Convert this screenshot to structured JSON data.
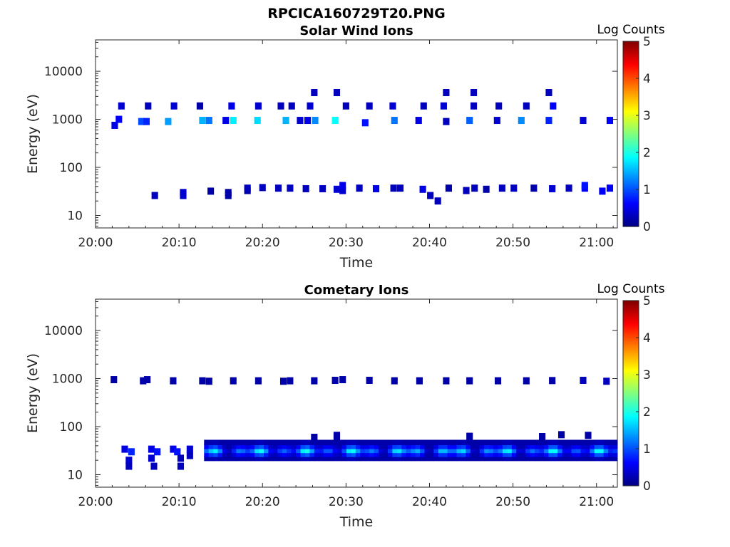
{
  "figure": {
    "title": "RPCICA160729T20.PNG"
  },
  "chart_data": [
    {
      "type": "heatmap",
      "title": "Solar Wind Ions",
      "xlabel": "Time",
      "ylabel": "Energy (eV)",
      "x_ticks": [
        "20:00",
        "20:10",
        "20:20",
        "20:30",
        "20:40",
        "20:50",
        "21:00"
      ],
      "xlim_minutes": [
        0,
        62.5
      ],
      "y_scale": "log",
      "y_ticks": [
        "10",
        "100",
        "1000",
        "10000"
      ],
      "ylim": [
        5.5,
        45000
      ],
      "colorbar": {
        "label": "Log Counts",
        "ticks": [
          "0",
          "1",
          "2",
          "3",
          "4",
          "5"
        ],
        "range": [
          0,
          5
        ],
        "colormap": "jet"
      },
      "cells": [
        [
          2.3,
          750,
          0.5
        ],
        [
          2.8,
          1000,
          0.6
        ],
        [
          3.1,
          1900,
          0.4
        ],
        [
          5.5,
          900,
          1.0
        ],
        [
          6.1,
          900,
          0.8
        ],
        [
          6.3,
          1900,
          0.3
        ],
        [
          8.7,
          900,
          1.4
        ],
        [
          9.4,
          1900,
          0.4
        ],
        [
          12.5,
          1900,
          0.2
        ],
        [
          12.8,
          950,
          1.5
        ],
        [
          13.6,
          950,
          1.2
        ],
        [
          15.6,
          950,
          0.5
        ],
        [
          16.5,
          950,
          1.8
        ],
        [
          16.3,
          1900,
          0.5
        ],
        [
          19.4,
          950,
          1.7
        ],
        [
          19.5,
          1900,
          0.4
        ],
        [
          22.2,
          1900,
          0.3
        ],
        [
          22.8,
          950,
          1.5
        ],
        [
          23.5,
          1900,
          0.3
        ],
        [
          24.5,
          950,
          0.4
        ],
        [
          25.4,
          950,
          0.5
        ],
        [
          25.7,
          1900,
          0.4
        ],
        [
          26.3,
          950,
          1.3
        ],
        [
          26.2,
          3600,
          0.3
        ],
        [
          28.7,
          950,
          1.9
        ],
        [
          28.9,
          3600,
          0.3
        ],
        [
          30.0,
          1900,
          0.3
        ],
        [
          32.3,
          850,
          0.7
        ],
        [
          32.8,
          1900,
          0.3
        ],
        [
          35.8,
          950,
          1.2
        ],
        [
          35.6,
          1900,
          0.4
        ],
        [
          38.7,
          950,
          0.5
        ],
        [
          39.3,
          1900,
          0.3
        ],
        [
          41.7,
          1900,
          0.4
        ],
        [
          42.0,
          900,
          0.3
        ],
        [
          42.0,
          3600,
          0.3
        ],
        [
          44.8,
          950,
          1.1
        ],
        [
          45.3,
          1900,
          0.3
        ],
        [
          45.3,
          3600,
          0.3
        ],
        [
          48.1,
          950,
          0.4
        ],
        [
          48.3,
          1900,
          0.3
        ],
        [
          51.0,
          950,
          1.3
        ],
        [
          51.6,
          1900,
          0.3
        ],
        [
          54.3,
          950,
          0.8
        ],
        [
          54.8,
          1900,
          0.6
        ],
        [
          54.3,
          3600,
          0.3
        ],
        [
          58.4,
          950,
          0.4
        ],
        [
          61.6,
          950,
          0.6
        ],
        [
          7.1,
          26,
          0.3
        ],
        [
          10.5,
          26,
          0.4
        ],
        [
          10.5,
          30,
          0.4
        ],
        [
          13.8,
          32,
          0.2
        ],
        [
          15.9,
          30,
          0.2
        ],
        [
          15.9,
          26,
          0.2
        ],
        [
          18.2,
          33,
          0.2
        ],
        [
          18.2,
          37,
          0.3
        ],
        [
          20.0,
          38,
          0.3
        ],
        [
          21.9,
          37,
          0.3
        ],
        [
          23.3,
          37,
          0.3
        ],
        [
          25.2,
          36,
          0.3
        ],
        [
          27.2,
          36,
          0.3
        ],
        [
          28.9,
          35,
          0.4
        ],
        [
          29.6,
          33,
          0.4
        ],
        [
          29.6,
          42,
          0.5
        ],
        [
          31.6,
          37,
          0.3
        ],
        [
          33.6,
          36,
          0.5
        ],
        [
          35.7,
          37,
          0.3
        ],
        [
          36.5,
          37,
          0.3
        ],
        [
          39.2,
          35,
          0.5
        ],
        [
          40.1,
          26,
          0.3
        ],
        [
          41.0,
          20,
          0.3
        ],
        [
          42.3,
          37,
          0.2
        ],
        [
          44.4,
          33,
          0.3
        ],
        [
          45.4,
          37,
          0.3
        ],
        [
          46.8,
          35,
          0.2
        ],
        [
          48.7,
          37,
          0.3
        ],
        [
          50.1,
          37,
          0.3
        ],
        [
          52.5,
          37,
          0.2
        ],
        [
          54.7,
          36,
          0.4
        ],
        [
          56.7,
          37,
          0.3
        ],
        [
          58.6,
          37,
          0.6
        ],
        [
          58.6,
          42,
          0.7
        ],
        [
          60.7,
          32,
          0.6
        ],
        [
          61.6,
          37,
          0.6
        ]
      ]
    },
    {
      "type": "heatmap",
      "title": "Cometary Ions",
      "xlabel": "Time",
      "ylabel": "Energy (eV)",
      "x_ticks": [
        "20:00",
        "20:10",
        "20:20",
        "20:30",
        "20:40",
        "20:50",
        "21:00"
      ],
      "xlim_minutes": [
        0,
        62.5
      ],
      "y_scale": "log",
      "y_ticks": [
        "10",
        "100",
        "1000",
        "10000"
      ],
      "ylim": [
        5.5,
        45000
      ],
      "colorbar": {
        "label": "Log Counts",
        "ticks": [
          "0",
          "1",
          "2",
          "3",
          "4",
          "5"
        ],
        "range": [
          0,
          5
        ],
        "colormap": "jet"
      },
      "cells": [
        [
          2.2,
          950,
          0.2
        ],
        [
          5.7,
          900,
          0.2
        ],
        [
          6.2,
          950,
          0.2
        ],
        [
          9.3,
          900,
          0.2
        ],
        [
          12.8,
          900,
          0.2
        ],
        [
          13.6,
          880,
          0.2
        ],
        [
          16.5,
          900,
          0.2
        ],
        [
          19.5,
          900,
          0.2
        ],
        [
          22.5,
          880,
          0.2
        ],
        [
          23.3,
          900,
          0.2
        ],
        [
          26.2,
          900,
          0.2
        ],
        [
          28.7,
          920,
          0.2
        ],
        [
          29.6,
          950,
          0.2
        ],
        [
          32.8,
          920,
          0.2
        ],
        [
          35.8,
          900,
          0.2
        ],
        [
          38.8,
          900,
          0.2
        ],
        [
          42.0,
          900,
          0.2
        ],
        [
          44.8,
          900,
          0.2
        ],
        [
          48.2,
          900,
          0.2
        ],
        [
          51.6,
          900,
          0.2
        ],
        [
          54.7,
          910,
          0.2
        ],
        [
          58.4,
          920,
          0.3
        ],
        [
          61.2,
          880,
          0.3
        ],
        [
          26.2,
          60,
          0.2
        ],
        [
          28.9,
          60,
          0.2
        ],
        [
          28.9,
          66,
          0.2
        ],
        [
          44.8,
          63,
          0.2
        ],
        [
          53.5,
          62,
          0.2
        ],
        [
          55.8,
          68,
          0.2
        ],
        [
          59.0,
          66,
          0.2
        ],
        [
          3.5,
          34,
          0.5
        ],
        [
          4.3,
          30,
          0.8
        ],
        [
          4.0,
          20,
          0.4
        ],
        [
          4.0,
          15,
          0.3
        ],
        [
          6.7,
          34,
          0.5
        ],
        [
          7.4,
          30,
          0.7
        ],
        [
          6.7,
          22,
          0.4
        ],
        [
          7.0,
          15,
          0.3
        ],
        [
          9.3,
          34,
          0.5
        ],
        [
          9.8,
          30,
          0.7
        ],
        [
          10.2,
          22,
          0.3
        ],
        [
          10.2,
          15,
          0.3
        ],
        [
          11.3,
          34,
          0.4
        ],
        [
          11.3,
          25,
          0.3
        ]
      ],
      "band": {
        "start_minute": 13,
        "end_minute": 62.3,
        "energy_low": 20,
        "energy_high": 52,
        "peak_log_counts": 2.0
      }
    }
  ]
}
